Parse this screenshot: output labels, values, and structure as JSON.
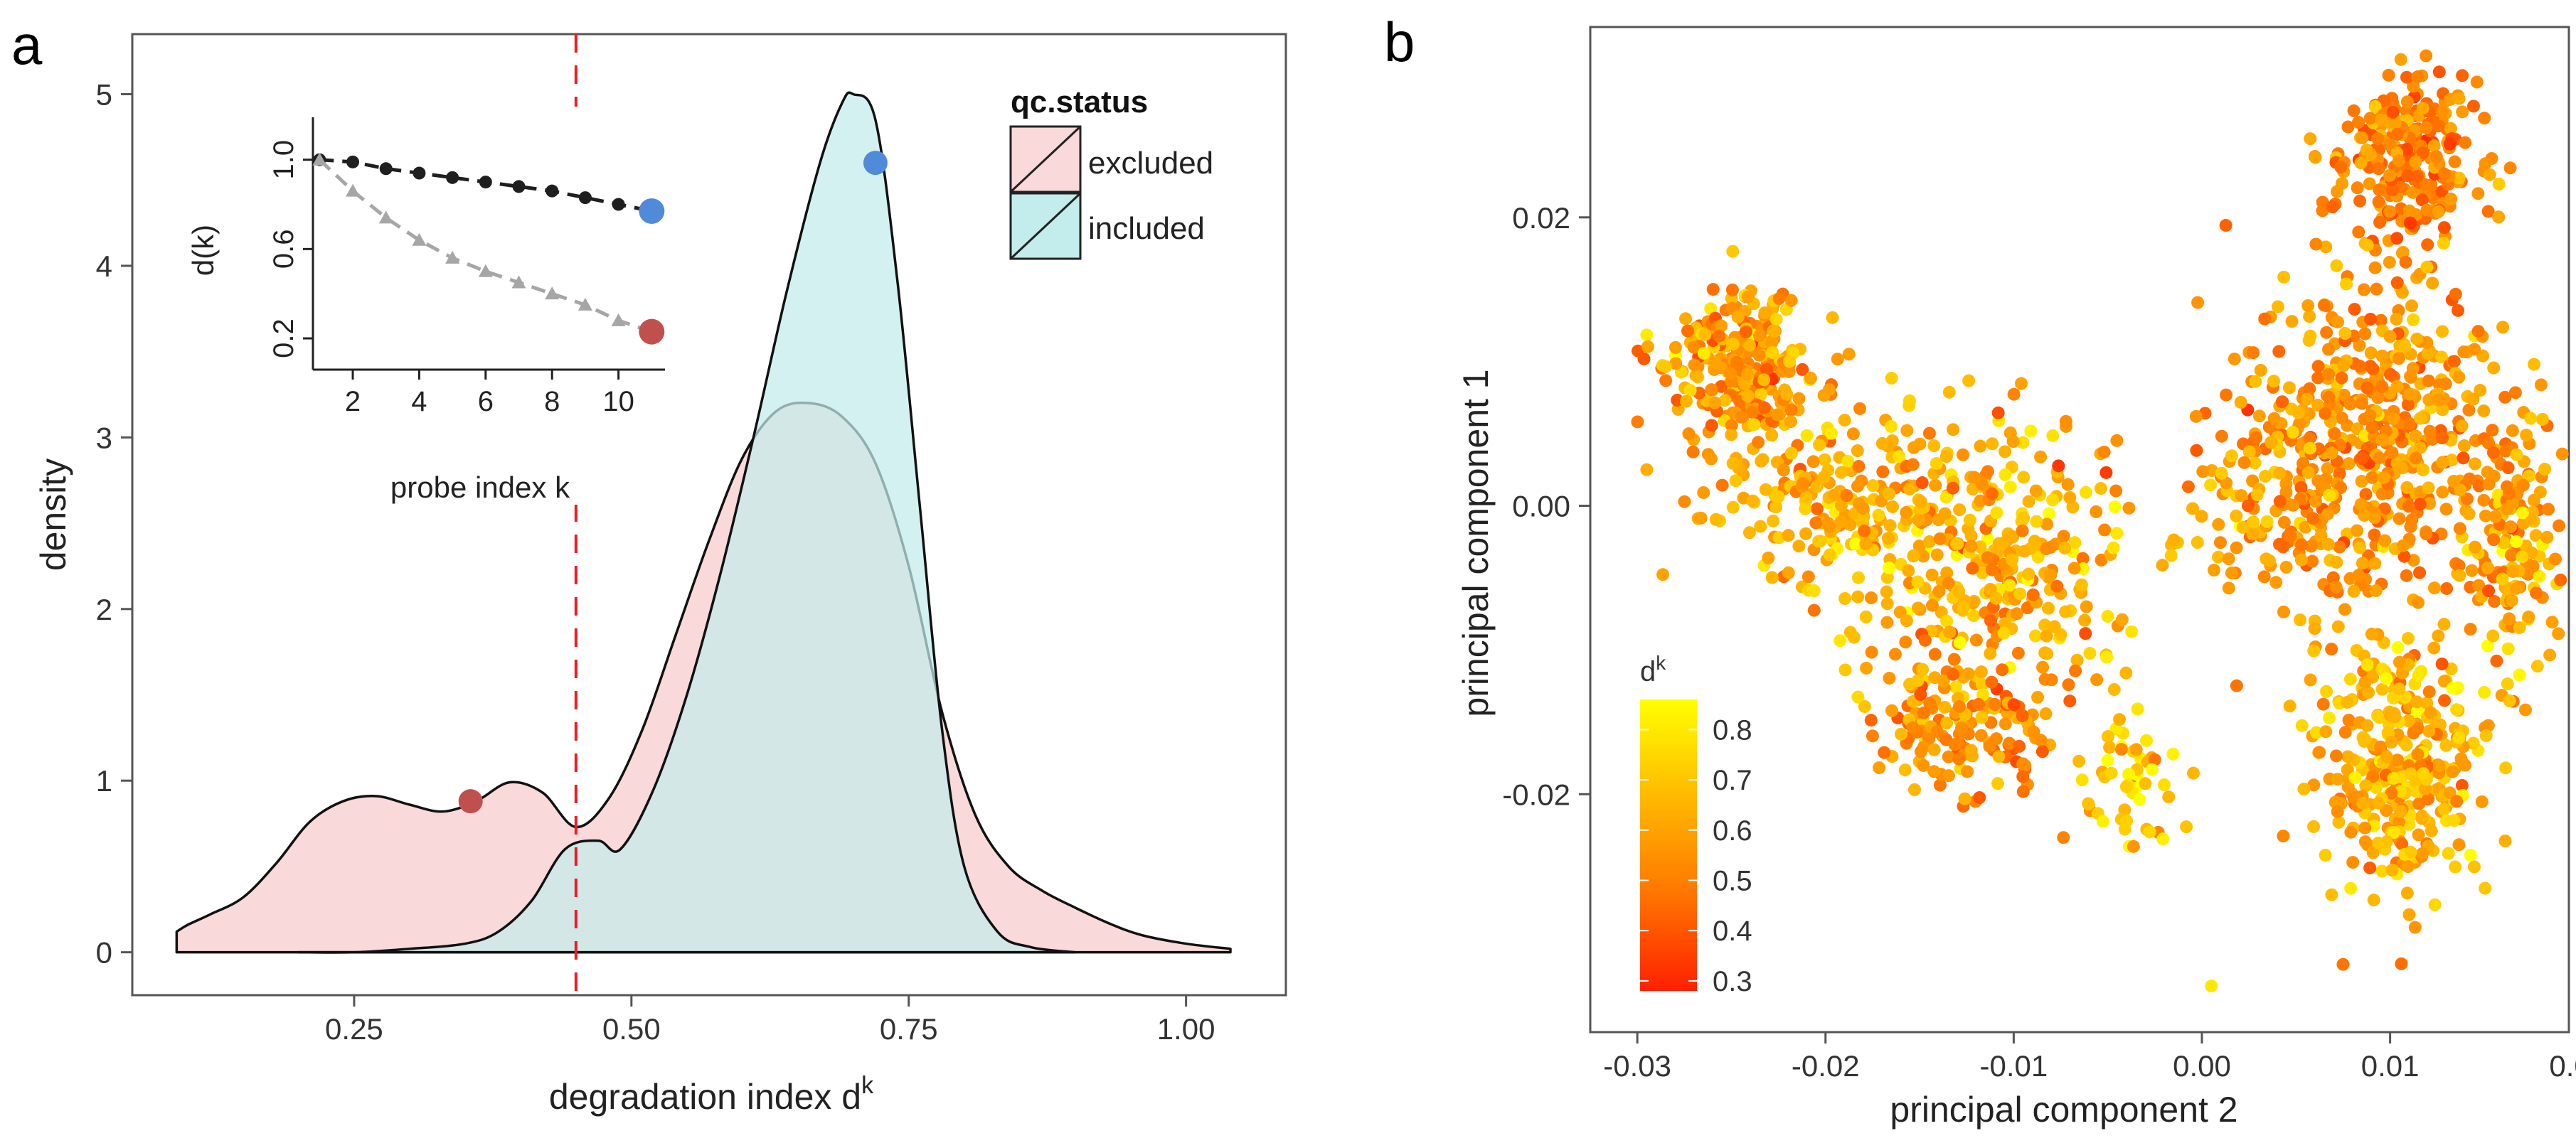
{
  "panels": {
    "a": {
      "label": "a"
    },
    "b": {
      "label": "b"
    }
  },
  "chart_data": [
    {
      "id": "a",
      "type": "area",
      "title": "",
      "xlabel": "degradation index d",
      "xlabel_superscript": "k",
      "ylabel": "density",
      "xlim": [
        0.05,
        1.09
      ],
      "ylim": [
        -0.25,
        5.35
      ],
      "xticks": [
        0.25,
        0.5,
        0.75,
        1.0
      ],
      "xtick_labels": [
        "0.25",
        "0.50",
        "0.75",
        "1.00"
      ],
      "yticks": [
        0,
        1,
        2,
        3,
        4,
        5
      ],
      "ytick_labels": [
        "0",
        "1",
        "2",
        "3",
        "4",
        "5"
      ],
      "threshold_x": 0.45,
      "threshold_color": "#ee1c25",
      "legend": {
        "title": "qc.status",
        "position": "top-right",
        "entries": [
          {
            "label": "excluded",
            "color": "#f9d9d9"
          },
          {
            "label": "included",
            "color": "#c3ecec"
          }
        ]
      },
      "series": [
        {
          "name": "excluded",
          "color": "#f9d9d9",
          "x": [
            0.09,
            0.1,
            0.12,
            0.15,
            0.18,
            0.21,
            0.24,
            0.27,
            0.3,
            0.33,
            0.36,
            0.39,
            0.42,
            0.45,
            0.48,
            0.51,
            0.54,
            0.57,
            0.6,
            0.63,
            0.66,
            0.69,
            0.72,
            0.75,
            0.78,
            0.81,
            0.84,
            0.87,
            0.9,
            0.93,
            0.96,
            1.0,
            1.04
          ],
          "values": [
            0.12,
            0.16,
            0.22,
            0.32,
            0.52,
            0.76,
            0.88,
            0.91,
            0.86,
            0.82,
            0.88,
            0.99,
            0.93,
            0.73,
            0.9,
            1.3,
            1.85,
            2.4,
            2.88,
            3.15,
            3.2,
            3.12,
            2.85,
            2.25,
            1.4,
            0.8,
            0.5,
            0.36,
            0.26,
            0.17,
            0.1,
            0.05,
            0.02
          ]
        },
        {
          "name": "included",
          "color": "#c3ecec",
          "x": [
            0.2,
            0.25,
            0.3,
            0.35,
            0.38,
            0.41,
            0.44,
            0.47,
            0.49,
            0.52,
            0.55,
            0.58,
            0.61,
            0.64,
            0.67,
            0.69,
            0.7,
            0.72,
            0.74,
            0.76,
            0.78,
            0.8,
            0.83,
            0.86,
            0.9
          ],
          "values": [
            0.0,
            0.0,
            0.02,
            0.05,
            0.12,
            0.3,
            0.6,
            0.65,
            0.6,
            0.95,
            1.5,
            2.2,
            3.0,
            3.85,
            4.6,
            4.95,
            5.0,
            4.85,
            3.9,
            2.6,
            1.3,
            0.5,
            0.12,
            0.03,
            0.0
          ]
        }
      ],
      "markers": [
        {
          "label": "excluded sample",
          "x": 0.355,
          "y": 0.88,
          "color": "#c0504d"
        },
        {
          "label": "included sample",
          "x": 0.72,
          "y": 4.6,
          "color": "#4f8bd8"
        }
      ],
      "inset": {
        "type": "line",
        "xlabel": "probe index k",
        "ylabel": "d(k)",
        "xlim": [
          0.8,
          11.4
        ],
        "ylim": [
          0.06,
          1.19
        ],
        "xticks": [
          2,
          4,
          6,
          8,
          10
        ],
        "yticks": [
          0.2,
          0.6,
          1.0
        ],
        "ytick_labels": [
          "0.2",
          "0.6",
          "1.0"
        ],
        "series": [
          {
            "name": "included sample",
            "color": "#1f1f1f",
            "x": [
              1,
              2,
              3,
              4,
              5,
              6,
              7,
              8,
              9,
              10,
              11
            ],
            "values": [
              1.0,
              0.99,
              0.96,
              0.94,
              0.92,
              0.9,
              0.88,
              0.86,
              0.83,
              0.8,
              0.77
            ],
            "end_marker_color": "#4f8bd8"
          },
          {
            "name": "excluded sample",
            "color": "#a6a6a6",
            "x": [
              1,
              2,
              3,
              4,
              5,
              6,
              7,
              8,
              9,
              10,
              11
            ],
            "values": [
              1.0,
              0.86,
              0.74,
              0.64,
              0.56,
              0.5,
              0.45,
              0.4,
              0.35,
              0.28,
              0.23
            ],
            "end_marker_color": "#c0504d"
          }
        ]
      }
    },
    {
      "id": "b",
      "type": "scatter",
      "title": "",
      "xlabel": "principal component 2",
      "ylabel": "principal component 1",
      "xlim": [
        -0.0325,
        0.0195
      ],
      "ylim": [
        -0.0365,
        0.0332
      ],
      "xticks": [
        -0.03,
        -0.02,
        -0.01,
        0.0,
        0.01,
        0.02
      ],
      "xtick_labels": [
        "-0.03",
        "-0.02",
        "-0.01",
        "0.00",
        "0.01",
        "0.02"
      ],
      "yticks": [
        -0.02,
        0.0,
        0.02
      ],
      "ytick_labels": [
        "-0.02",
        "0.00",
        "0.02"
      ],
      "colorbar": {
        "title": "d",
        "title_superscript": "k",
        "min": 0.28,
        "max": 0.86,
        "ticks": [
          0.3,
          0.4,
          0.5,
          0.6,
          0.7,
          0.8
        ],
        "tick_labels": [
          "0.3",
          "0.4",
          "0.5",
          "0.6",
          "0.7",
          "0.8"
        ],
        "low_color": "#ff2000",
        "high_color": "#ffff00",
        "position": "bottom-left"
      },
      "clusters": [
        {
          "name": "cluster-upper-left",
          "count": 260,
          "center": [
            -0.0245,
            0.0095
          ],
          "spread": [
            0.0025,
            0.0035
          ],
          "color_mean": 0.6
        },
        {
          "name": "cluster-left-middle",
          "count": 210,
          "center": [
            -0.0195,
            0.0005
          ],
          "spread": [
            0.0045,
            0.0045
          ],
          "color_mean": 0.66
        },
        {
          "name": "cluster-center",
          "count": 320,
          "center": [
            -0.011,
            -0.004
          ],
          "spread": [
            0.0048,
            0.0065
          ],
          "color_mean": 0.65
        },
        {
          "name": "cluster-center-lower",
          "count": 150,
          "center": [
            -0.0125,
            -0.0155
          ],
          "spread": [
            0.0035,
            0.003
          ],
          "color_mean": 0.58
        },
        {
          "name": "cluster-mid-lower",
          "count": 50,
          "center": [
            -0.0035,
            -0.0195
          ],
          "spread": [
            0.002,
            0.0035
          ],
          "color_mean": 0.72
        },
        {
          "name": "cluster-right-upper",
          "count": 260,
          "center": [
            0.011,
            0.024
          ],
          "spread": [
            0.0025,
            0.0038
          ],
          "color_mean": 0.55
        },
        {
          "name": "cluster-right-body",
          "count": 520,
          "center": [
            0.0095,
            0.0045
          ],
          "spread": [
            0.0045,
            0.0075
          ],
          "color_mean": 0.58
        },
        {
          "name": "cluster-right-lower",
          "count": 340,
          "center": [
            0.0105,
            -0.0175
          ],
          "spread": [
            0.0032,
            0.006
          ],
          "color_mean": 0.65
        },
        {
          "name": "cluster-far-right",
          "count": 150,
          "center": [
            0.0165,
            -0.002
          ],
          "spread": [
            0.0015,
            0.008
          ],
          "color_mean": 0.62
        },
        {
          "name": "cluster-center-right",
          "count": 80,
          "center": [
            0.0035,
            0.0005
          ],
          "spread": [
            0.0028,
            0.004
          ],
          "color_mean": 0.6
        }
      ],
      "outliers": [
        {
          "x": 0.0005,
          "y": -0.0333,
          "value": 0.8
        },
        {
          "x": 0.0075,
          "y": -0.0318,
          "value": 0.5
        },
        {
          "x": -0.0295,
          "y": 0.0025,
          "value": 0.65
        }
      ]
    }
  ]
}
